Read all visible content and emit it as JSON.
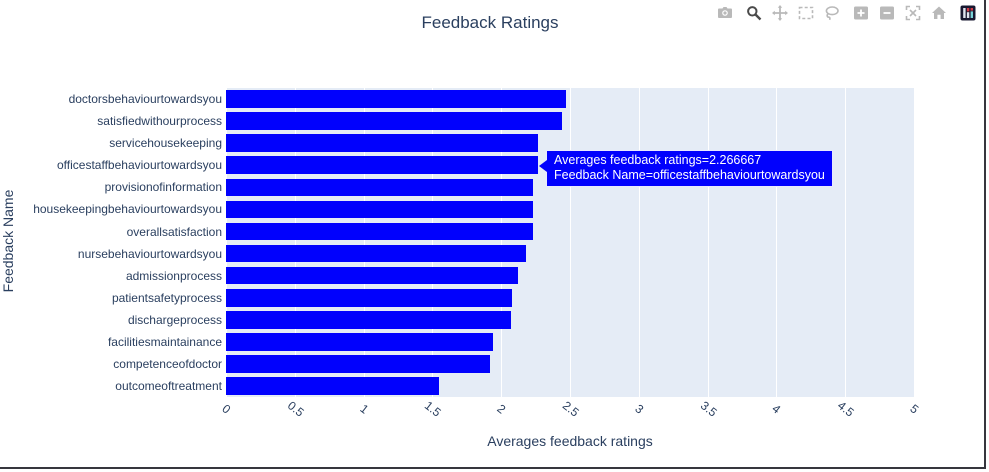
{
  "chart_data": {
    "type": "bar",
    "orientation": "horizontal",
    "title": "Feedback Ratings",
    "xlabel": "Averages feedback ratings",
    "ylabel": "Feedback Name",
    "categories": [
      "doctorsbehaviourtowardsyou",
      "satisfiedwithourprocess",
      "servicehousekeeping",
      "officestaffbehaviourtowardsyou",
      "provisionofinformation",
      "housekeepingbehaviourtowardsyou",
      "overallsatisfaction",
      "nursebehaviourtowardsyou",
      "admissionprocess",
      "patientsafetyprocess",
      "dischargeprocess",
      "facilitiesmaintainance",
      "competenceofdoctor",
      "outcomeoftreatment"
    ],
    "values": [
      2.47,
      2.44,
      2.27,
      2.266667,
      2.23,
      2.23,
      2.23,
      2.18,
      2.12,
      2.08,
      2.07,
      1.94,
      1.92,
      1.55
    ],
    "xlim": [
      0,
      5
    ],
    "xticks": [
      0,
      0.5,
      1,
      1.5,
      2,
      2.5,
      3,
      3.5,
      4,
      4.5,
      5
    ],
    "grid": true,
    "legend": "none",
    "bar_color": "#0101fd",
    "plot_bg_color": "#e5ecf6",
    "grid_color": "#ffffff",
    "text_color": "#2a3f5f"
  },
  "tooltip": {
    "line1": "Averages feedback ratings=2.266667",
    "line2": "Feedback Name=officestaffbehaviourtowardsyou",
    "bg_color": "#0101fd",
    "text_color": "#ffffff"
  },
  "modebar": {
    "icons": [
      "camera-icon",
      "zoom-icon",
      "pan-icon",
      "box-select-icon",
      "lasso-select-icon",
      "zoom-in-icon",
      "zoom-out-icon",
      "autoscale-icon",
      "reset-axes-home-icon",
      "plotly-logo-icon"
    ],
    "active_icon": "zoom-icon",
    "inactive_color": "#b9b9b9",
    "active_color": "#4a4a4a"
  }
}
